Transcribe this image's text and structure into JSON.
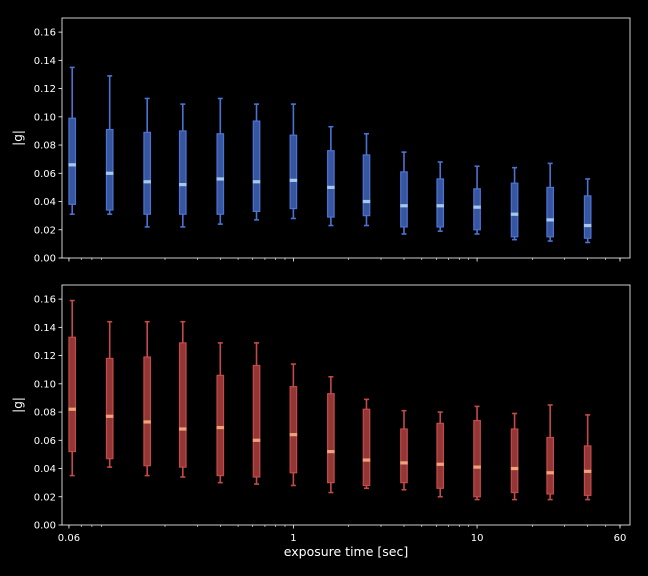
{
  "chart_data": [
    {
      "type": "box",
      "ylabel": "|g|",
      "xlabel": "",
      "xscale": "log",
      "xlim": [
        0.055,
        68
      ],
      "ylim": [
        0,
        0.17
      ],
      "yticks": [
        0.0,
        0.02,
        0.04,
        0.06,
        0.08,
        0.1,
        0.12,
        0.14,
        0.16
      ],
      "ytick_labels": [
        "0.00",
        "0.02",
        "0.04",
        "0.06",
        "0.08",
        "0.10",
        "0.12",
        "0.14",
        "0.16"
      ],
      "xtick_labels": [],
      "box_color": "#4b73d4",
      "median_color": "#a6c8ee",
      "boxes": [
        {
          "x": 0.0625,
          "min": 0.031,
          "q1": 0.038,
          "median": 0.066,
          "q3": 0.099,
          "max": 0.135
        },
        {
          "x": 0.1,
          "min": 0.031,
          "q1": 0.034,
          "median": 0.06,
          "q3": 0.091,
          "max": 0.129
        },
        {
          "x": 0.16,
          "min": 0.022,
          "q1": 0.031,
          "median": 0.054,
          "q3": 0.089,
          "max": 0.113
        },
        {
          "x": 0.25,
          "min": 0.022,
          "q1": 0.031,
          "median": 0.052,
          "q3": 0.09,
          "max": 0.109
        },
        {
          "x": 0.4,
          "min": 0.024,
          "q1": 0.031,
          "median": 0.056,
          "q3": 0.088,
          "max": 0.113
        },
        {
          "x": 0.63,
          "min": 0.027,
          "q1": 0.033,
          "median": 0.054,
          "q3": 0.097,
          "max": 0.109
        },
        {
          "x": 1.0,
          "min": 0.028,
          "q1": 0.035,
          "median": 0.055,
          "q3": 0.087,
          "max": 0.109
        },
        {
          "x": 1.6,
          "min": 0.023,
          "q1": 0.029,
          "median": 0.05,
          "q3": 0.076,
          "max": 0.093
        },
        {
          "x": 2.5,
          "min": 0.023,
          "q1": 0.03,
          "median": 0.04,
          "q3": 0.073,
          "max": 0.088
        },
        {
          "x": 4.0,
          "min": 0.017,
          "q1": 0.022,
          "median": 0.037,
          "q3": 0.061,
          "max": 0.075
        },
        {
          "x": 6.3,
          "min": 0.019,
          "q1": 0.022,
          "median": 0.037,
          "q3": 0.056,
          "max": 0.068
        },
        {
          "x": 10.0,
          "min": 0.017,
          "q1": 0.02,
          "median": 0.036,
          "q3": 0.049,
          "max": 0.065
        },
        {
          "x": 16.0,
          "min": 0.013,
          "q1": 0.015,
          "median": 0.031,
          "q3": 0.053,
          "max": 0.064
        },
        {
          "x": 25.0,
          "min": 0.012,
          "q1": 0.015,
          "median": 0.027,
          "q3": 0.05,
          "max": 0.067
        },
        {
          "x": 40.0,
          "min": 0.011,
          "q1": 0.014,
          "median": 0.023,
          "q3": 0.044,
          "max": 0.056
        }
      ]
    },
    {
      "type": "box",
      "ylabel": "|g|",
      "xlabel": "exposure time [sec]",
      "xscale": "log",
      "xlim": [
        0.055,
        68
      ],
      "ylim": [
        0,
        0.17
      ],
      "yticks": [
        0.0,
        0.02,
        0.04,
        0.06,
        0.08,
        0.1,
        0.12,
        0.14,
        0.16
      ],
      "ytick_labels": [
        "0.00",
        "0.02",
        "0.04",
        "0.06",
        "0.08",
        "0.10",
        "0.12",
        "0.14",
        "0.16"
      ],
      "xticks": [
        0.06,
        1,
        10,
        60
      ],
      "xtick_labels": [
        "0.06",
        "1",
        "10",
        "60"
      ],
      "box_color": "#c44a48",
      "median_color": "#f0a278",
      "boxes": [
        {
          "x": 0.0625,
          "min": 0.035,
          "q1": 0.052,
          "median": 0.082,
          "q3": 0.133,
          "max": 0.159
        },
        {
          "x": 0.1,
          "min": 0.041,
          "q1": 0.047,
          "median": 0.077,
          "q3": 0.118,
          "max": 0.144
        },
        {
          "x": 0.16,
          "min": 0.035,
          "q1": 0.042,
          "median": 0.073,
          "q3": 0.119,
          "max": 0.144
        },
        {
          "x": 0.25,
          "min": 0.034,
          "q1": 0.041,
          "median": 0.068,
          "q3": 0.129,
          "max": 0.144
        },
        {
          "x": 0.4,
          "min": 0.03,
          "q1": 0.035,
          "median": 0.069,
          "q3": 0.106,
          "max": 0.129
        },
        {
          "x": 0.63,
          "min": 0.029,
          "q1": 0.034,
          "median": 0.06,
          "q3": 0.113,
          "max": 0.129
        },
        {
          "x": 1.0,
          "min": 0.028,
          "q1": 0.037,
          "median": 0.064,
          "q3": 0.098,
          "max": 0.114
        },
        {
          "x": 1.6,
          "min": 0.023,
          "q1": 0.03,
          "median": 0.052,
          "q3": 0.093,
          "max": 0.105
        },
        {
          "x": 2.5,
          "min": 0.026,
          "q1": 0.028,
          "median": 0.046,
          "q3": 0.082,
          "max": 0.089
        },
        {
          "x": 4.0,
          "min": 0.025,
          "q1": 0.03,
          "median": 0.044,
          "q3": 0.068,
          "max": 0.081
        },
        {
          "x": 6.3,
          "min": 0.02,
          "q1": 0.026,
          "median": 0.043,
          "q3": 0.072,
          "max": 0.08
        },
        {
          "x": 10.0,
          "min": 0.018,
          "q1": 0.02,
          "median": 0.041,
          "q3": 0.074,
          "max": 0.084
        },
        {
          "x": 16.0,
          "min": 0.018,
          "q1": 0.023,
          "median": 0.04,
          "q3": 0.068,
          "max": 0.079
        },
        {
          "x": 25.0,
          "min": 0.018,
          "q1": 0.022,
          "median": 0.037,
          "q3": 0.062,
          "max": 0.085
        },
        {
          "x": 40.0,
          "min": 0.018,
          "q1": 0.021,
          "median": 0.038,
          "q3": 0.056,
          "max": 0.078
        }
      ]
    }
  ]
}
